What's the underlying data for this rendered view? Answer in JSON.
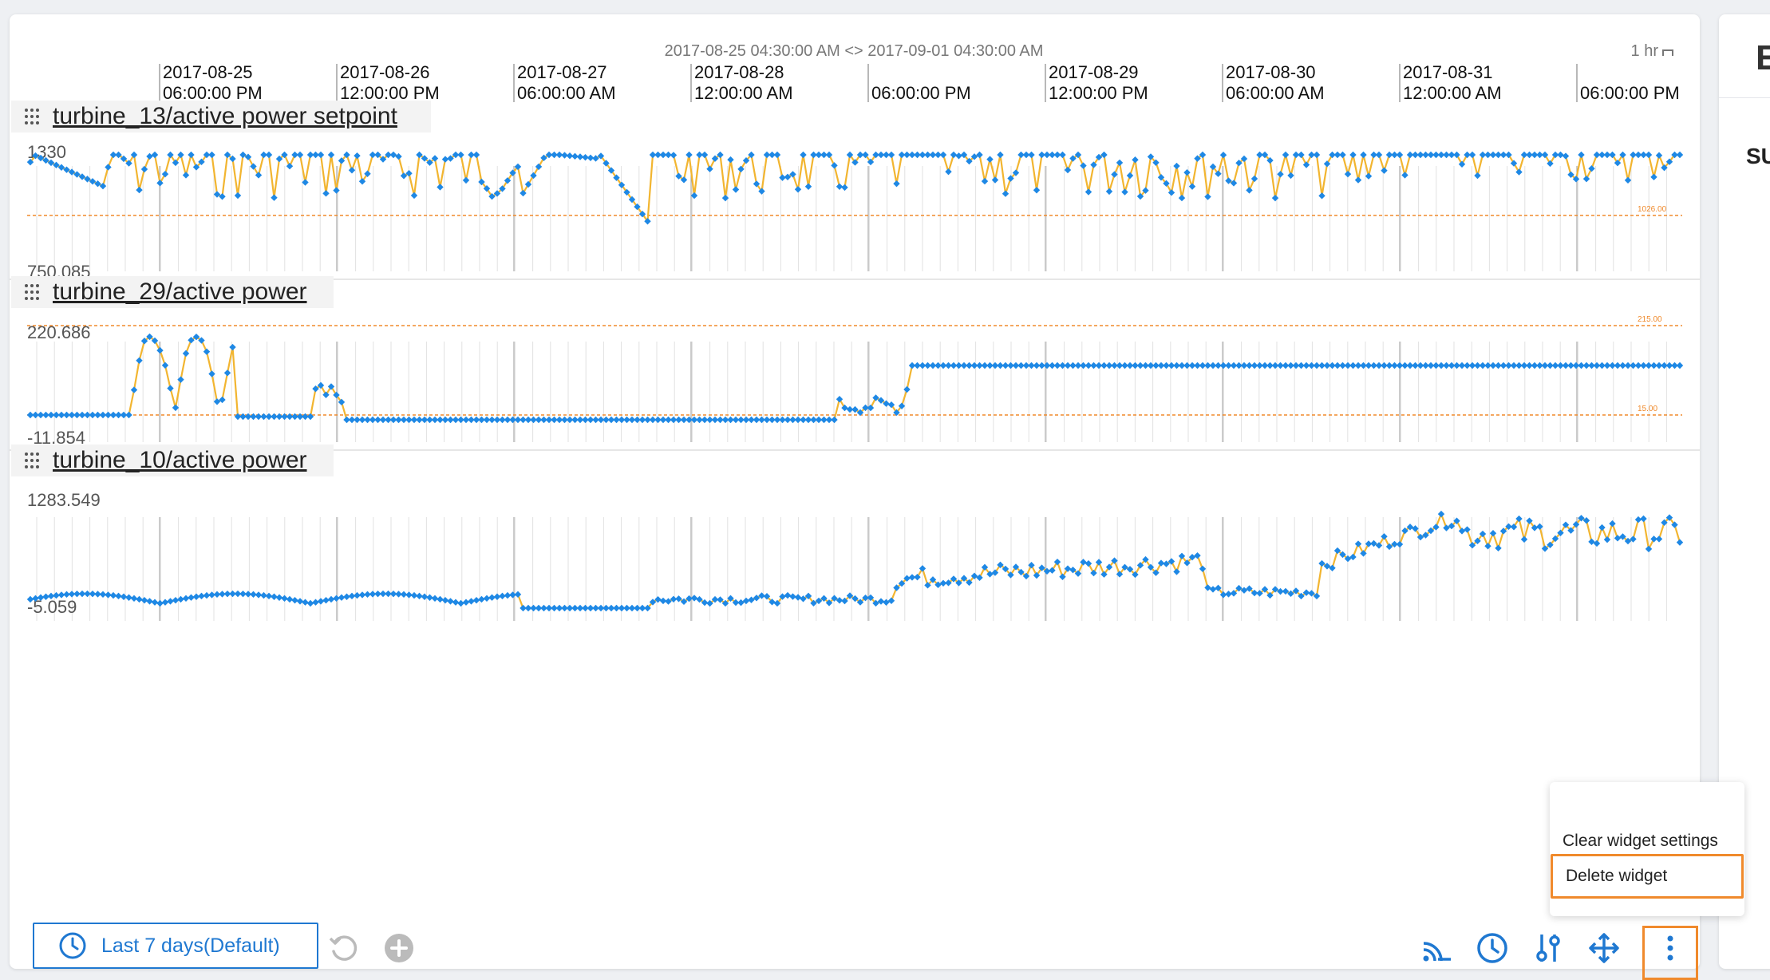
{
  "header": {
    "range_label": "2017-08-25 04:30:00 AM <> 2017-09-01 04:30:00 AM",
    "granularity": "1 hr"
  },
  "time_axis": [
    {
      "date": "2017-08-25",
      "time": "06:00:00 PM"
    },
    {
      "date": "2017-08-26",
      "time": "12:00:00 PM"
    },
    {
      "date": "2017-08-27",
      "time": "06:00:00 AM"
    },
    {
      "date": "2017-08-28",
      "time": "12:00:00 AM"
    },
    {
      "date": "",
      "time": "06:00:00 PM"
    },
    {
      "date": "2017-08-29",
      "time": "12:00:00 PM"
    },
    {
      "date": "2017-08-30",
      "time": "06:00:00 AM"
    },
    {
      "date": "2017-08-31",
      "time": "12:00:00 AM"
    },
    {
      "date": "",
      "time": "06:00:00 PM"
    }
  ],
  "trends": [
    {
      "title": "turbine_13/active power setpoint",
      "ymax": "1330",
      "ymin": "750.085",
      "threshold_labels": [
        "1026.00"
      ]
    },
    {
      "title": "turbine_29/active power",
      "ymax": "220.686",
      "ymin": "-11.854",
      "threshold_labels": [
        "215.00",
        "15.00"
      ]
    },
    {
      "title": "turbine_10/active power",
      "ymax": "1283.549",
      "ymin": "-5.059",
      "threshold_labels": []
    }
  ],
  "footer": {
    "time_range_button": "Last 7 days(Default)"
  },
  "context_menu": {
    "items": [
      "Clear widget settings",
      "Delete widget"
    ]
  },
  "side_panel": {
    "header_letter": "E",
    "subtitle": "SU"
  },
  "colors": {
    "accent": "#1f78d1",
    "series_marker": "#1e88e5",
    "series_line": "#f2b530",
    "threshold": "#f08a2c",
    "highlight": "#f08a2c"
  },
  "chart_data": {
    "type": "line",
    "x_range": [
      "2017-08-25 04:30:00 AM",
      "2017-09-01 04:30:00 AM"
    ],
    "series": [
      {
        "name": "turbine_13/active power setpoint",
        "ylim": [
          750.085,
          1330
        ]
      },
      {
        "name": "turbine_29/active power",
        "ylim": [
          -11.854,
          220.686
        ]
      },
      {
        "name": "turbine_10/active power",
        "ylim": [
          -5.059,
          1283.549
        ]
      }
    ]
  }
}
